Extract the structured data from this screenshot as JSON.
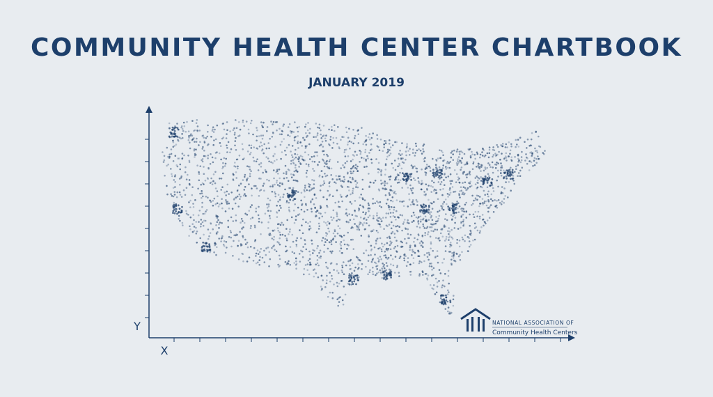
{
  "header": {
    "title": "COMMUNITY HEALTH CENTER CHARTBOOK",
    "subtitle": "JANUARY 2019"
  },
  "axes": {
    "x_label": "X",
    "y_label": "Y"
  },
  "logo": {
    "line1": "NATIONAL ASSOCIATION OF",
    "line2": "Community Health Centers"
  }
}
